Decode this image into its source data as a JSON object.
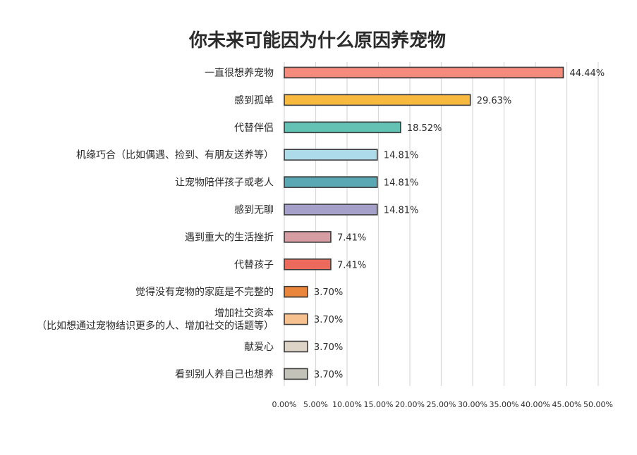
{
  "chart_data": {
    "type": "bar",
    "orientation": "horizontal",
    "title": "你未来可能因为什么原因养宠物",
    "xlabel": "",
    "ylabel": "",
    "xlim": [
      0,
      50
    ],
    "grid": true,
    "x_ticks": [
      "0.00%",
      "5.00%",
      "10.00%",
      "15.00%",
      "20.00%",
      "25.00%",
      "30.00%",
      "35.00%",
      "40.00%",
      "45.00%",
      "50.00%"
    ],
    "categories": [
      [
        "一直很想养宠物"
      ],
      [
        "感到孤单"
      ],
      [
        "代替伴侣"
      ],
      [
        "机缘巧合（比如偶遇、捡到、有朋友送养等）"
      ],
      [
        "让宠物陪伴孩子或老人"
      ],
      [
        "感到无聊"
      ],
      [
        "遇到重大的生活挫折"
      ],
      [
        "代替孩子"
      ],
      [
        "觉得没有宠物的家庭是不完整的"
      ],
      [
        "增加社交资本",
        "（比如想通过宠物结识更多的人、增加社交的话题等）"
      ],
      [
        "献爱心"
      ],
      [
        "看到别人养自己也想养"
      ]
    ],
    "values": [
      44.44,
      29.63,
      18.52,
      14.81,
      14.81,
      14.81,
      7.41,
      7.41,
      3.7,
      3.7,
      3.7,
      3.7
    ],
    "value_labels": [
      "44.44%",
      "29.63%",
      "18.52%",
      "14.81%",
      "14.81%",
      "14.81%",
      "7.41%",
      "7.41%",
      "3.70%",
      "3.70%",
      "3.70%",
      "3.70%"
    ],
    "colors": [
      "#f58b7c",
      "#f8b93f",
      "#63c2b4",
      "#aedbea",
      "#5aa8b3",
      "#a4a0ca",
      "#d69ea2",
      "#ec6a5c",
      "#e9863b",
      "#f7c18f",
      "#ddd3c6",
      "#c3c2b8"
    ]
  }
}
